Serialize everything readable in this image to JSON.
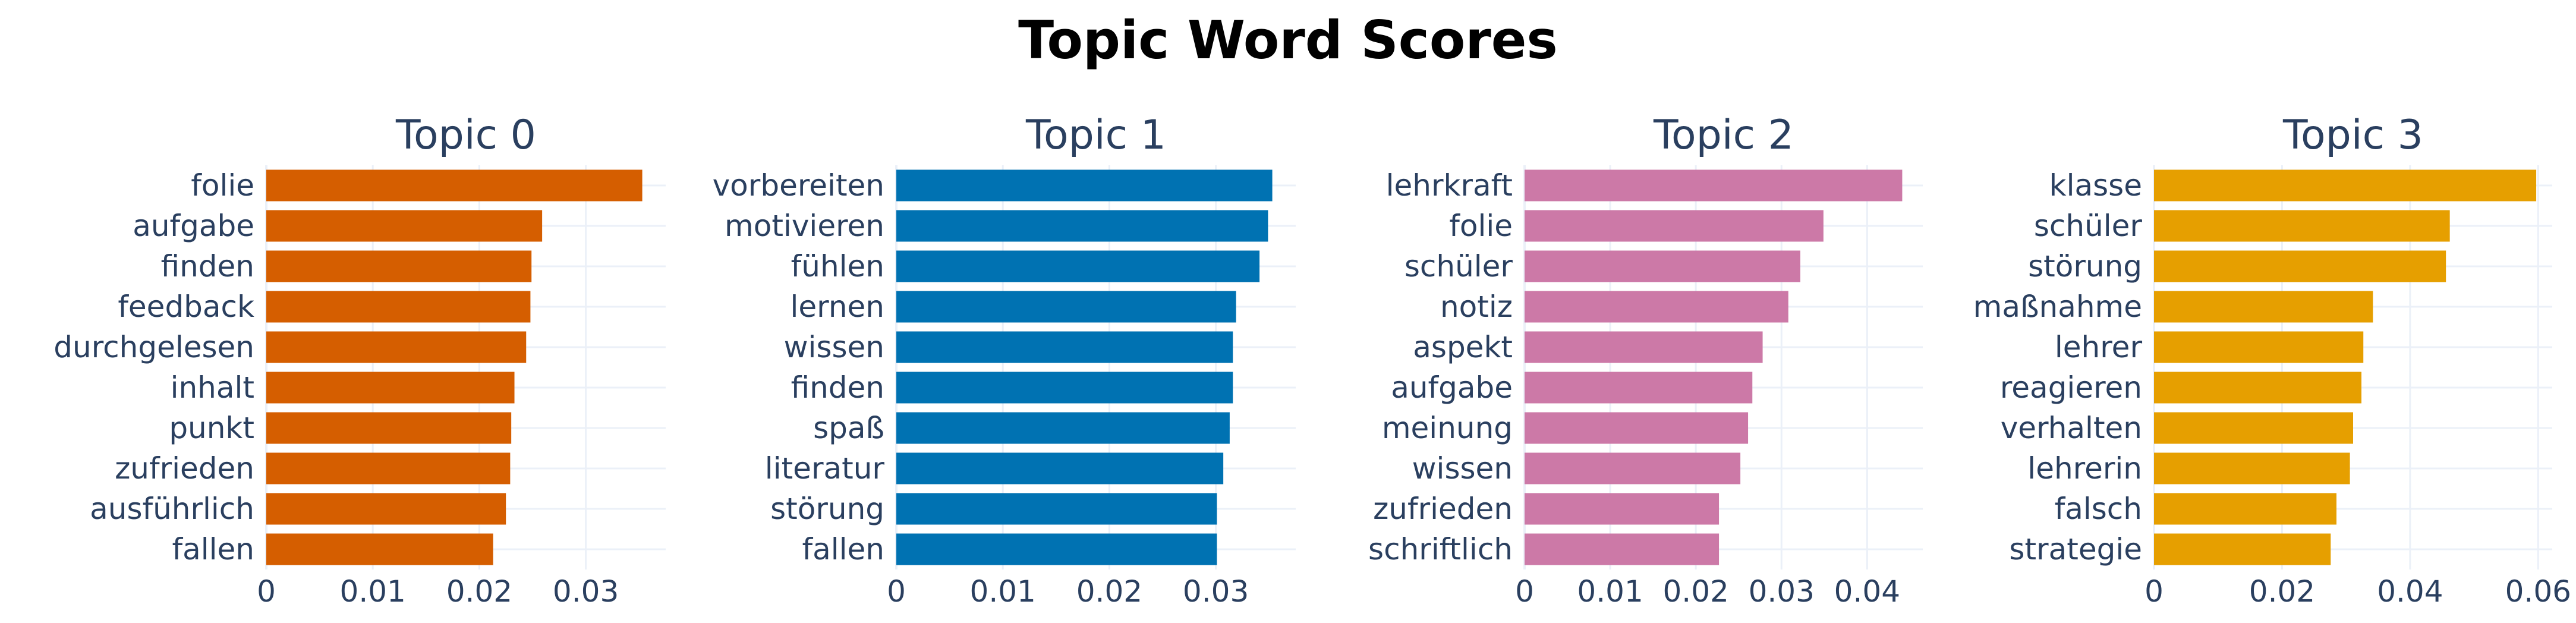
{
  "figure_title": "Topic Word Scores",
  "chart_data": [
    {
      "type": "bar",
      "orientation": "horizontal",
      "title": "Topic 0",
      "color": "#D55E00",
      "categories": [
        "folie",
        "aufgabe",
        "finden",
        "feedback",
        "durchgelesen",
        "inhalt",
        "punkt",
        "zufrieden",
        "ausführlich",
        "fallen"
      ],
      "values": [
        0.0353,
        0.0259,
        0.0249,
        0.0248,
        0.0244,
        0.0233,
        0.023,
        0.0229,
        0.0225,
        0.0213
      ],
      "xlim": [
        0,
        0.0375
      ],
      "xticks": [
        0,
        0.01,
        0.02,
        0.03
      ],
      "xtick_labels": [
        "0",
        "0.01",
        "0.02",
        "0.03"
      ],
      "grid": true
    },
    {
      "type": "bar",
      "orientation": "horizontal",
      "title": "Topic 1",
      "color": "#0072B2",
      "categories": [
        "vorbereiten",
        "motivieren",
        "fühlen",
        "lernen",
        "wissen",
        "finden",
        "spaß",
        "literatur",
        "störung",
        "fallen"
      ],
      "values": [
        0.0353,
        0.0349,
        0.0341,
        0.0319,
        0.0316,
        0.0316,
        0.0313,
        0.0307,
        0.0301,
        0.0301
      ],
      "xlim": [
        0,
        0.0375
      ],
      "xticks": [
        0,
        0.01,
        0.02,
        0.03
      ],
      "xtick_labels": [
        "0",
        "0.01",
        "0.02",
        "0.03"
      ],
      "grid": true
    },
    {
      "type": "bar",
      "orientation": "horizontal",
      "title": "Topic 2",
      "color": "#CC79A7",
      "categories": [
        "lehrkraft",
        "folie",
        "schüler",
        "notiz",
        "aspekt",
        "aufgabe",
        "meinung",
        "wissen",
        "zufrieden",
        "schriftlich"
      ],
      "values": [
        0.0441,
        0.0349,
        0.0322,
        0.0308,
        0.0278,
        0.0266,
        0.0261,
        0.0252,
        0.0227,
        0.0227
      ],
      "xlim": [
        0,
        0.0465
      ],
      "xticks": [
        0,
        0.01,
        0.02,
        0.03,
        0.04
      ],
      "xtick_labels": [
        "0",
        "0.01",
        "0.02",
        "0.03",
        "0.04"
      ],
      "grid": true
    },
    {
      "type": "bar",
      "orientation": "horizontal",
      "title": "Topic 3",
      "color": "#E69F00",
      "categories": [
        "klasse",
        "schüler",
        "störung",
        "maßnahme",
        "lehrer",
        "reagieren",
        "verhalten",
        "lehrerin",
        "falsch",
        "strategie"
      ],
      "values": [
        0.0597,
        0.0462,
        0.0456,
        0.0342,
        0.0327,
        0.0324,
        0.0311,
        0.0306,
        0.0285,
        0.0276
      ],
      "xlim": [
        0,
        0.0622
      ],
      "xticks": [
        0,
        0.02,
        0.04,
        0.06
      ],
      "xtick_labels": [
        "0",
        "0.02",
        "0.04",
        "0.06"
      ],
      "grid": true
    }
  ]
}
